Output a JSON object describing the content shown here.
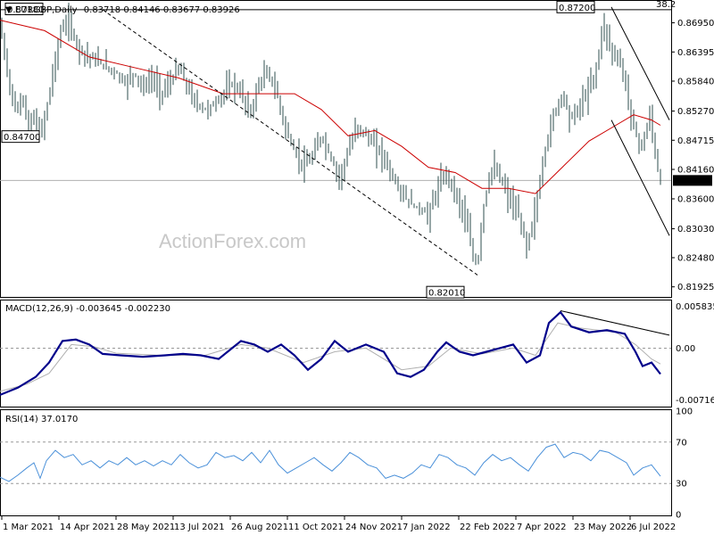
{
  "chart_data": {
    "type": "candlestick",
    "symbol_header": "EURGBP,Daily",
    "ohlc_text": "0.83718 0.84146 0.83677 0.83926",
    "watermark": "ActionForex.com",
    "colors": {
      "bars": "#2f4f4f",
      "ma": "#cc0000",
      "macd_main": "#00008b",
      "macd_signal": "#b0b0b0",
      "rsi": "#4a90d9",
      "guide": "#000000"
    },
    "price_axis": {
      "ticks": [
        "0.86950",
        "0.86395",
        "0.85840",
        "0.85270",
        "0.84715",
        "0.84160",
        "0.83600",
        "0.83030",
        "0.82480",
        "0.81925"
      ],
      "range": [
        0.8175,
        0.8735
      ],
      "current_price": "0.83926",
      "hline_level": 0.872,
      "hline_label": "38.2",
      "ref_line_level": 0.8395
    },
    "annotations": [
      {
        "text": "0.87180",
        "value": 0.8718
      },
      {
        "text": "0.84700",
        "value": 0.847
      },
      {
        "text": "0.82010",
        "value": 0.8201
      },
      {
        "text": "0.87200",
        "value": 0.872
      }
    ],
    "x_labels": [
      "1 Mar 2021",
      "14 Apr 2021",
      "28 May 2021",
      "13 Jul 2021",
      "26 Aug 2021",
      "11 Oct 2021",
      "24 Nov 2021",
      "7 Jan 2022",
      "22 Feb 2022",
      "7 Apr 2022",
      "23 May 2022",
      "6 Jul 2022"
    ],
    "macd": {
      "label": "MACD(12,26,9) -0.003645 -0.002230",
      "ticks": [
        "0.005835",
        "0.00",
        "-0.007166"
      ],
      "range": [
        -0.008,
        0.0065
      ]
    },
    "rsi": {
      "label": "RSI(14) 37.0170",
      "ticks": [
        "100",
        "70",
        "30",
        "0"
      ],
      "range": [
        0,
        100
      ]
    },
    "price_path": [
      [
        0,
        0.869
      ],
      [
        8,
        0.86
      ],
      [
        18,
        0.852
      ],
      [
        25,
        0.856
      ],
      [
        32,
        0.849
      ],
      [
        38,
        0.852
      ],
      [
        45,
        0.848
      ],
      [
        52,
        0.853
      ],
      [
        60,
        0.861
      ],
      [
        68,
        0.868
      ],
      [
        76,
        0.87
      ],
      [
        84,
        0.866
      ],
      [
        92,
        0.864
      ],
      [
        100,
        0.863
      ],
      [
        110,
        0.862
      ],
      [
        120,
        0.861
      ],
      [
        130,
        0.86
      ],
      [
        140,
        0.858
      ],
      [
        150,
        0.86
      ],
      [
        160,
        0.857
      ],
      [
        170,
        0.859
      ],
      [
        180,
        0.856
      ],
      [
        190,
        0.858
      ],
      [
        200,
        0.861
      ],
      [
        210,
        0.857
      ],
      [
        220,
        0.854
      ],
      [
        230,
        0.853
      ],
      [
        240,
        0.854
      ],
      [
        250,
        0.856
      ],
      [
        260,
        0.858
      ],
      [
        270,
        0.856
      ],
      [
        280,
        0.852
      ],
      [
        290,
        0.858
      ],
      [
        300,
        0.86
      ],
      [
        310,
        0.856
      ],
      [
        320,
        0.849
      ],
      [
        330,
        0.845
      ],
      [
        340,
        0.842
      ],
      [
        350,
        0.844
      ],
      [
        360,
        0.848
      ],
      [
        370,
        0.844
      ],
      [
        380,
        0.84
      ],
      [
        390,
        0.845
      ],
      [
        400,
        0.85
      ],
      [
        410,
        0.848
      ],
      [
        420,
        0.846
      ],
      [
        430,
        0.844
      ],
      [
        440,
        0.84
      ],
      [
        450,
        0.837
      ],
      [
        460,
        0.835
      ],
      [
        470,
        0.834
      ],
      [
        480,
        0.833
      ],
      [
        490,
        0.838
      ],
      [
        500,
        0.841
      ],
      [
        510,
        0.837
      ],
      [
        520,
        0.833
      ],
      [
        530,
        0.825
      ],
      [
        535,
        0.823
      ],
      [
        540,
        0.833
      ],
      [
        550,
        0.842
      ],
      [
        560,
        0.84
      ],
      [
        570,
        0.836
      ],
      [
        580,
        0.833
      ],
      [
        590,
        0.827
      ],
      [
        600,
        0.834
      ],
      [
        610,
        0.845
      ],
      [
        620,
        0.852
      ],
      [
        630,
        0.856
      ],
      [
        640,
        0.851
      ],
      [
        650,
        0.854
      ],
      [
        660,
        0.857
      ],
      [
        670,
        0.862
      ],
      [
        675,
        0.87
      ],
      [
        685,
        0.864
      ],
      [
        695,
        0.862
      ],
      [
        705,
        0.854
      ],
      [
        712,
        0.848
      ],
      [
        720,
        0.846
      ],
      [
        728,
        0.852
      ],
      [
        735,
        0.843
      ],
      [
        740,
        0.839
      ]
    ],
    "ma_path": [
      [
        0,
        0.87
      ],
      [
        50,
        0.868
      ],
      [
        100,
        0.863
      ],
      [
        150,
        0.861
      ],
      [
        200,
        0.859
      ],
      [
        250,
        0.856
      ],
      [
        300,
        0.856
      ],
      [
        330,
        0.856
      ],
      [
        360,
        0.853
      ],
      [
        390,
        0.848
      ],
      [
        420,
        0.849
      ],
      [
        450,
        0.846
      ],
      [
        480,
        0.842
      ],
      [
        510,
        0.841
      ],
      [
        540,
        0.838
      ],
      [
        570,
        0.838
      ],
      [
        600,
        0.837
      ],
      [
        630,
        0.842
      ],
      [
        660,
        0.847
      ],
      [
        690,
        0.85
      ],
      [
        710,
        0.852
      ],
      [
        730,
        0.851
      ],
      [
        740,
        0.85
      ]
    ],
    "macd_path": [
      [
        0,
        -0.0065
      ],
      [
        20,
        -0.0055
      ],
      [
        40,
        -0.004
      ],
      [
        55,
        -0.002
      ],
      [
        70,
        0.001
      ],
      [
        85,
        0.0012
      ],
      [
        100,
        0.0005
      ],
      [
        115,
        -0.0008
      ],
      [
        135,
        -0.001
      ],
      [
        160,
        -0.0012
      ],
      [
        185,
        -0.001
      ],
      [
        205,
        -0.0008
      ],
      [
        225,
        -0.001
      ],
      [
        245,
        -0.0015
      ],
      [
        255,
        -0.0005
      ],
      [
        270,
        0.001
      ],
      [
        285,
        0.0005
      ],
      [
        300,
        -0.0005
      ],
      [
        315,
        0.0005
      ],
      [
        330,
        -0.001
      ],
      [
        345,
        -0.003
      ],
      [
        360,
        -0.0015
      ],
      [
        375,
        0.001
      ],
      [
        390,
        -0.0005
      ],
      [
        410,
        0.0005
      ],
      [
        430,
        -0.0005
      ],
      [
        445,
        -0.0035
      ],
      [
        460,
        -0.004
      ],
      [
        475,
        -0.003
      ],
      [
        490,
        -0.0005
      ],
      [
        500,
        0.0008
      ],
      [
        515,
        -0.0005
      ],
      [
        530,
        -0.001
      ],
      [
        545,
        -0.0005
      ],
      [
        560,
        0.0
      ],
      [
        575,
        0.0005
      ],
      [
        590,
        -0.002
      ],
      [
        605,
        -0.001
      ],
      [
        615,
        0.0035
      ],
      [
        628,
        0.005
      ],
      [
        640,
        0.003
      ],
      [
        660,
        0.0022
      ],
      [
        680,
        0.0025
      ],
      [
        700,
        0.002
      ],
      [
        712,
        -0.0005
      ],
      [
        720,
        -0.0025
      ],
      [
        730,
        -0.002
      ],
      [
        740,
        -0.0036
      ]
    ],
    "macd_signal_path": [
      [
        0,
        -0.006
      ],
      [
        30,
        -0.005
      ],
      [
        55,
        -0.0035
      ],
      [
        80,
        0.0005
      ],
      [
        105,
        0.0002
      ],
      [
        130,
        -0.0007
      ],
      [
        180,
        -0.001
      ],
      [
        230,
        -0.001
      ],
      [
        270,
        0.0005
      ],
      [
        300,
        0.0
      ],
      [
        340,
        -0.002
      ],
      [
        375,
        -0.0005
      ],
      [
        410,
        0.0
      ],
      [
        450,
        -0.003
      ],
      [
        480,
        -0.0025
      ],
      [
        505,
        0.0
      ],
      [
        540,
        -0.0008
      ],
      [
        575,
        0.0
      ],
      [
        600,
        -0.001
      ],
      [
        625,
        0.0035
      ],
      [
        650,
        0.0028
      ],
      [
        690,
        0.0022
      ],
      [
        712,
        0.0005
      ],
      [
        730,
        -0.0015
      ],
      [
        740,
        -0.0022
      ]
    ],
    "macd_trend": [
      [
        628,
        0.0052
      ],
      [
        750,
        0.0018
      ]
    ],
    "rsi_path": [
      [
        0,
        36
      ],
      [
        10,
        32
      ],
      [
        20,
        38
      ],
      [
        30,
        45
      ],
      [
        38,
        50
      ],
      [
        45,
        35
      ],
      [
        52,
        52
      ],
      [
        62,
        62
      ],
      [
        72,
        55
      ],
      [
        82,
        58
      ],
      [
        92,
        48
      ],
      [
        102,
        52
      ],
      [
        112,
        45
      ],
      [
        122,
        52
      ],
      [
        132,
        48
      ],
      [
        142,
        55
      ],
      [
        152,
        48
      ],
      [
        162,
        52
      ],
      [
        172,
        47
      ],
      [
        182,
        52
      ],
      [
        192,
        48
      ],
      [
        202,
        58
      ],
      [
        212,
        50
      ],
      [
        222,
        45
      ],
      [
        232,
        48
      ],
      [
        242,
        60
      ],
      [
        252,
        55
      ],
      [
        262,
        57
      ],
      [
        272,
        52
      ],
      [
        282,
        60
      ],
      [
        292,
        50
      ],
      [
        302,
        62
      ],
      [
        312,
        48
      ],
      [
        322,
        40
      ],
      [
        332,
        45
      ],
      [
        342,
        50
      ],
      [
        352,
        55
      ],
      [
        362,
        48
      ],
      [
        372,
        42
      ],
      [
        382,
        50
      ],
      [
        392,
        60
      ],
      [
        402,
        55
      ],
      [
        412,
        48
      ],
      [
        422,
        45
      ],
      [
        432,
        35
      ],
      [
        442,
        38
      ],
      [
        452,
        35
      ],
      [
        462,
        40
      ],
      [
        472,
        48
      ],
      [
        482,
        45
      ],
      [
        492,
        58
      ],
      [
        502,
        55
      ],
      [
        512,
        48
      ],
      [
        522,
        45
      ],
      [
        532,
        38
      ],
      [
        542,
        50
      ],
      [
        552,
        58
      ],
      [
        562,
        52
      ],
      [
        572,
        55
      ],
      [
        582,
        48
      ],
      [
        592,
        42
      ],
      [
        602,
        55
      ],
      [
        612,
        65
      ],
      [
        622,
        68
      ],
      [
        632,
        55
      ],
      [
        642,
        60
      ],
      [
        652,
        58
      ],
      [
        662,
        52
      ],
      [
        672,
        62
      ],
      [
        682,
        60
      ],
      [
        692,
        55
      ],
      [
        702,
        50
      ],
      [
        710,
        38
      ],
      [
        720,
        45
      ],
      [
        730,
        48
      ],
      [
        740,
        37
      ]
    ],
    "price_channel": {
      "upper": [
        [
          685,
          0.8725
        ],
        [
          750,
          0.851
        ]
      ],
      "lower": [
        [
          685,
          0.851
        ],
        [
          750,
          0.829
        ]
      ]
    },
    "price_trend_dashed": [
      [
        115,
        0.872
      ],
      [
        535,
        0.8215
      ]
    ]
  }
}
